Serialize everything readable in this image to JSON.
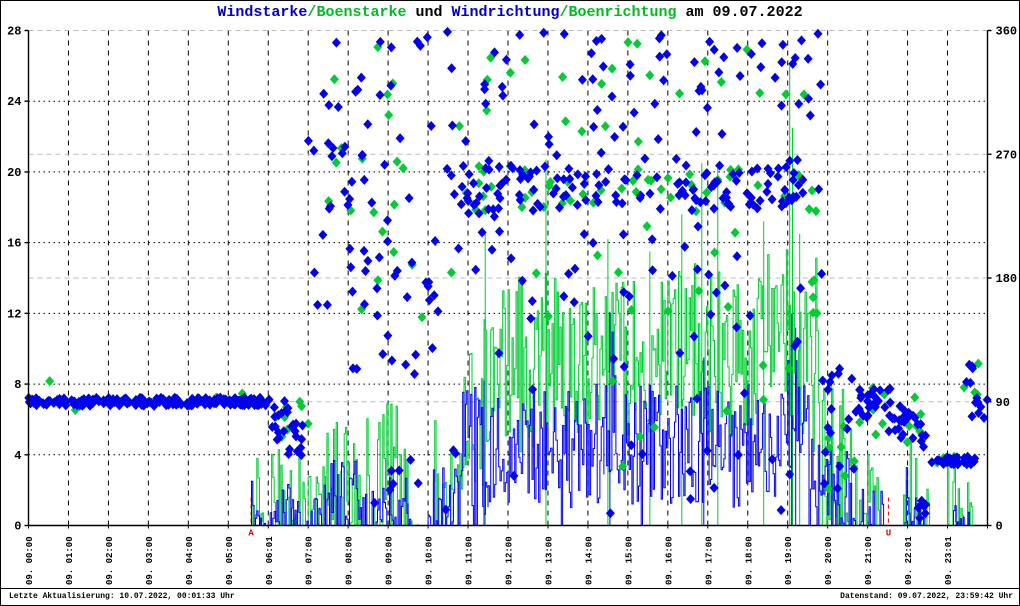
{
  "title": {
    "segments": [
      {
        "text": "Windstarke",
        "color": "#0000cc"
      },
      {
        "text": "/",
        "color": "#00bb22"
      },
      {
        "text": "Boenstarke",
        "color": "#00bb22"
      },
      {
        "text": " und ",
        "color": "#000000"
      },
      {
        "text": "Windrichtung",
        "color": "#0000cc"
      },
      {
        "text": "/",
        "color": "#00bb22"
      },
      {
        "text": "Boenrichtung",
        "color": "#00bb22"
      },
      {
        "text": " am 09.07.2022",
        "color": "#000000"
      }
    ]
  },
  "footer": {
    "left": "Letzte Aktualisierung: 10.07.2022, 00:01:33 Uhr",
    "right": "Datenstand: 09.07.2022, 23:59:42 Uhr"
  },
  "chart_data": {
    "type": "line+scatter",
    "date": "09.07.2022",
    "grid": {
      "v_hours": true,
      "h_left_ticks": [
        4,
        8,
        12,
        16,
        20,
        24
      ],
      "h_right_ticks": [
        90,
        180,
        270,
        360
      ],
      "gray": "#bbbbbb"
    },
    "x_axis": {
      "hours": 24,
      "labels": [
        "09. 00:00",
        "09. 01:00",
        "09. 02:00",
        "09. 03:00",
        "09. 04:00",
        "09. 05:00",
        "09. 06:01",
        "09. 07:00",
        "09. 08:00",
        "09. 09:00",
        "09. 10:00",
        "09. 11:00",
        "09. 12:00",
        "09. 13:00",
        "09. 14:00",
        "09. 15:00",
        "09. 16:00",
        "09. 17:00",
        "09. 18:00",
        "09. 19:00",
        "09. 20:00",
        "09. 21:00",
        "09. 22:01",
        "09. 23:01"
      ]
    },
    "y_left": {
      "min": 0,
      "max": 28,
      "ticks": [
        0,
        4,
        8,
        12,
        16,
        20,
        24,
        28
      ]
    },
    "y_right": {
      "min": 0,
      "max": 360,
      "ticks": [
        0,
        90,
        180,
        270,
        360
      ]
    },
    "sun_markers": [
      {
        "label": "A",
        "hour": 5.57,
        "color": "#dd0000"
      },
      {
        "label": "U",
        "hour": 21.52,
        "color": "#dd0000"
      }
    ],
    "series": {
      "boenstaerke": {
        "name": "Boenstarke",
        "color": "#00cc33",
        "axis": "left",
        "style": "step-line",
        "segments": [
          [
            0,
            5.58,
            0,
            0,
            1
          ],
          [
            5.58,
            5.85,
            0,
            3.8,
            0.4
          ],
          [
            5.85,
            6.05,
            0,
            1,
            0.7
          ],
          [
            6.05,
            6.7,
            0,
            4.6,
            0.35
          ],
          [
            6.7,
            7.4,
            0,
            4,
            0.55
          ],
          [
            7.4,
            8.3,
            0,
            6.5,
            0.3
          ],
          [
            8.3,
            9.5,
            0,
            7.5,
            0.45
          ],
          [
            9.5,
            10.1,
            0,
            1,
            0.8
          ],
          [
            10.1,
            10.9,
            0,
            7,
            0.3
          ],
          [
            10.9,
            11.4,
            2,
            10,
            0.02
          ],
          [
            11.4,
            12.8,
            4,
            14.5,
            0
          ],
          [
            12.8,
            13.1,
            5,
            15,
            0
          ],
          [
            13.1,
            16.2,
            5,
            14,
            0
          ],
          [
            16.2,
            17.4,
            5,
            15.5,
            0
          ],
          [
            17.4,
            18.3,
            5,
            14,
            0
          ],
          [
            18.3,
            19.2,
            6,
            16,
            0
          ],
          [
            19.2,
            19.8,
            4,
            16,
            0
          ],
          [
            19.8,
            20.6,
            0,
            8,
            0.25
          ],
          [
            20.6,
            21.1,
            0,
            4.5,
            0.5
          ],
          [
            21.1,
            21.5,
            0,
            4.5,
            0.55
          ],
          [
            21.5,
            21.9,
            0,
            0,
            1
          ],
          [
            21.9,
            22.25,
            0,
            5,
            0.4
          ],
          [
            22.25,
            22.55,
            0,
            4,
            0.5
          ],
          [
            22.55,
            23.0,
            0,
            0,
            1
          ],
          [
            23.0,
            23.4,
            0,
            4.5,
            0.45
          ],
          [
            23.4,
            23.65,
            0,
            3,
            0.5
          ],
          [
            23.65,
            24,
            0,
            0,
            1
          ]
        ],
        "spikes": [
          [
            11.43,
            16.6
          ],
          [
            12.95,
            20.7
          ],
          [
            14.5,
            16.2
          ],
          [
            15.55,
            15.5
          ],
          [
            16.35,
            17.6
          ],
          [
            16.85,
            20.5
          ],
          [
            17.25,
            20.3
          ],
          [
            18.4,
            17.2
          ],
          [
            19.05,
            26.0
          ],
          [
            19.12,
            22.5
          ],
          [
            19.3,
            16.5
          ],
          [
            20.1,
            8.5
          ]
        ]
      },
      "windstaerke": {
        "name": "Windstarke",
        "color": "#0000ee",
        "axis": "left",
        "style": "step-line",
        "segments": [
          [
            0,
            5.58,
            0,
            0,
            1
          ],
          [
            5.58,
            5.8,
            0,
            2.6,
            0.5
          ],
          [
            5.8,
            6.05,
            0,
            0.7,
            0.7
          ],
          [
            6.05,
            6.6,
            0,
            3.5,
            0.45
          ],
          [
            6.6,
            7.4,
            0,
            1.6,
            0.6
          ],
          [
            7.4,
            8.2,
            0,
            4,
            0.35
          ],
          [
            8.2,
            9.5,
            0,
            3,
            0.5
          ],
          [
            9.5,
            10.1,
            0,
            0.6,
            0.8
          ],
          [
            10.1,
            10.8,
            0,
            3.5,
            0.35
          ],
          [
            10.8,
            11.5,
            0.5,
            8,
            0.05
          ],
          [
            11.5,
            14.4,
            1,
            8,
            0.02
          ],
          [
            14.4,
            14.7,
            2,
            11,
            0
          ],
          [
            14.7,
            19.0,
            1,
            8,
            0.02
          ],
          [
            19.0,
            19.4,
            2,
            11.5,
            0
          ],
          [
            19.4,
            19.9,
            1,
            8,
            0.05
          ],
          [
            19.9,
            20.6,
            0,
            5,
            0.3
          ],
          [
            20.6,
            21.2,
            0,
            3,
            0.5
          ],
          [
            21.2,
            21.5,
            0,
            2,
            0.6
          ],
          [
            21.5,
            21.9,
            0,
            0,
            1
          ],
          [
            21.9,
            22.2,
            0,
            3.5,
            0.4
          ],
          [
            22.2,
            22.5,
            0,
            2,
            0.5
          ],
          [
            22.5,
            23.05,
            0,
            0,
            1
          ],
          [
            23.05,
            23.55,
            0,
            1.5,
            0.5
          ],
          [
            23.55,
            24,
            0,
            0,
            1
          ]
        ],
        "spikes": [
          [
            11.4,
            8.2
          ],
          [
            14.55,
            12.1
          ],
          [
            16.9,
            9.5
          ],
          [
            19.1,
            12.0
          ],
          [
            19.2,
            11.2
          ]
        ]
      },
      "boenrichtung": {
        "name": "Boenrichtung",
        "color": "#00cc33",
        "axis": "right",
        "style": "scatter-diamond",
        "clusters": [
          [
            6.1,
            7.0,
            50,
            95,
            8
          ],
          [
            6.9,
            10.8,
            150,
            360,
            22
          ],
          [
            10.8,
            19.9,
            228,
            262,
            48
          ],
          [
            10.8,
            19.9,
            265,
            355,
            22
          ],
          [
            11,
            19.9,
            150,
            228,
            16
          ],
          [
            12,
            19.5,
            30,
            120,
            8
          ],
          [
            19.9,
            20.7,
            25,
            110,
            7
          ],
          [
            20.8,
            22.4,
            60,
            100,
            12
          ],
          [
            22.6,
            23.6,
            44,
            50,
            7
          ],
          [
            23.4,
            23.9,
            95,
            120,
            4
          ]
        ],
        "points": [
          [
            0.53,
            105
          ],
          [
            1.17,
            84
          ],
          [
            4.7,
            93
          ],
          [
            5.35,
            96
          ]
        ]
      },
      "windrichtung": {
        "name": "Windrichtung",
        "color": "#0000ee",
        "axis": "right",
        "style": "scatter-diamond",
        "clusters": [
          [
            0,
            6.12,
            87,
            93,
            200
          ],
          [
            6.1,
            6.6,
            58,
            95,
            14
          ],
          [
            6.5,
            7.0,
            40,
            75,
            12
          ],
          [
            6.9,
            8.2,
            150,
            330,
            16
          ],
          [
            7.3,
            10.8,
            170,
            360,
            45
          ],
          [
            8.0,
            10.8,
            100,
            180,
            18
          ],
          [
            7.5,
            10.8,
            10,
            65,
            10
          ],
          [
            10.8,
            19.9,
            226,
            262,
            135
          ],
          [
            10.8,
            19.9,
            265,
            355,
            55
          ],
          [
            12,
            20,
            332,
            360,
            16
          ],
          [
            10.8,
            19.9,
            150,
            225,
            32
          ],
          [
            11.5,
            19.9,
            90,
            150,
            13
          ],
          [
            11,
            20,
            8,
            60,
            12
          ],
          [
            19.9,
            20.7,
            20,
            115,
            16
          ],
          [
            20.7,
            21.1,
            78,
            100,
            12
          ],
          [
            21.0,
            21.6,
            84,
            102,
            13
          ],
          [
            21.5,
            21.9,
            62,
            80,
            9
          ],
          [
            21.8,
            22.2,
            74,
            92,
            9
          ],
          [
            22.1,
            22.45,
            55,
            75,
            7
          ],
          [
            22.25,
            22.5,
            5,
            18,
            6
          ],
          [
            22.6,
            23.3,
            44,
            50,
            20
          ],
          [
            23.0,
            23.75,
            44,
            50,
            16
          ],
          [
            23.35,
            23.65,
            100,
            122,
            5
          ],
          [
            23.6,
            24,
            76,
            96,
            8
          ]
        ],
        "points": []
      }
    }
  }
}
